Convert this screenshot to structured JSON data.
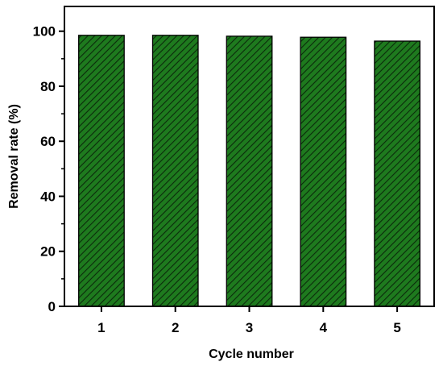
{
  "chart_data": {
    "type": "bar",
    "title": "",
    "xlabel": "Cycle number",
    "ylabel": "Removal rate (%)",
    "categories": [
      "1",
      "2",
      "3",
      "4",
      "5"
    ],
    "values": [
      98.5,
      98.5,
      98.2,
      97.8,
      96.4
    ],
    "ylim": [
      0,
      109
    ],
    "yticks": [
      0,
      20,
      40,
      60,
      80,
      100
    ],
    "yticks_minor": [
      10,
      30,
      50,
      70,
      90
    ],
    "grid": false,
    "legend": "none",
    "bar_fill": "#1e7a1e",
    "hatch_color": "#0b2a0b",
    "hatch_pattern": "diagonal"
  }
}
